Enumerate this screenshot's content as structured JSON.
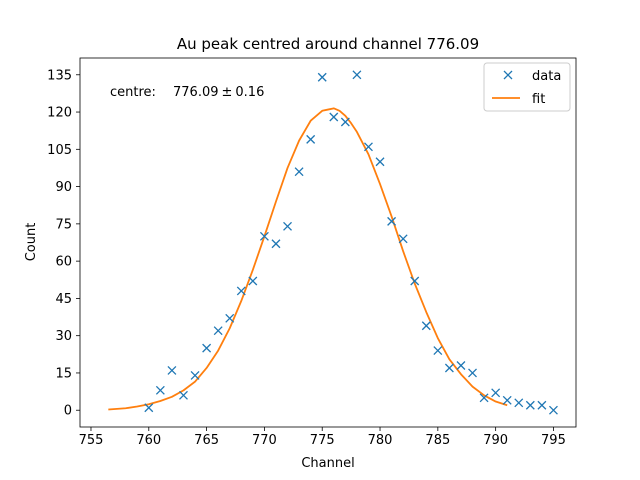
{
  "chart_data": {
    "type": "scatter",
    "title": "Au peak centred around channel 776.09",
    "xlabel": "Channel",
    "ylabel": "Count",
    "xlim": [
      754.05,
      796.95
    ],
    "ylim": [
      -6.75,
      141.75
    ],
    "xticks": [
      755,
      760,
      765,
      770,
      775,
      780,
      785,
      790,
      795
    ],
    "yticks": [
      0,
      15,
      30,
      45,
      60,
      75,
      90,
      105,
      120,
      135
    ],
    "grid": false,
    "legend_position": "top-right",
    "annotation": {
      "label": "centre:",
      "value": "776.09",
      "pm": "±",
      "error": "0.16"
    },
    "series": [
      {
        "name": "data",
        "kind": "markers",
        "marker": "x",
        "color": "#1f77b4",
        "x": [
          760,
          761,
          762,
          763,
          764,
          765,
          766,
          767,
          768,
          769,
          770,
          771,
          772,
          773,
          774,
          775,
          776,
          777,
          778,
          779,
          780,
          781,
          782,
          783,
          784,
          785,
          786,
          787,
          788,
          789,
          790,
          791,
          792,
          793,
          794,
          795
        ],
        "y": [
          1,
          8,
          16,
          6,
          14,
          25,
          32,
          37,
          48,
          52,
          70,
          67,
          74,
          96,
          109,
          134,
          118,
          116,
          135,
          106,
          100,
          76,
          69,
          52,
          34,
          24,
          17,
          18,
          15,
          5,
          7,
          4,
          3,
          2,
          2,
          0
        ]
      },
      {
        "name": "fit",
        "kind": "line",
        "color": "#ff7f0e",
        "x": [
          756.5,
          758,
          759,
          760,
          761,
          762,
          763,
          764,
          765,
          766,
          767,
          768,
          769,
          770,
          771,
          772,
          773,
          774,
          775,
          775.5,
          776,
          776.5,
          777,
          777.5,
          778,
          779,
          780,
          781,
          782,
          783,
          784,
          785,
          786,
          787,
          788,
          789,
          790,
          791
        ],
        "y": [
          0.3,
          0.8,
          1.5,
          2.4,
          3.7,
          5.4,
          8,
          11.5,
          17,
          24,
          33,
          44,
          56.5,
          70,
          84,
          97.5,
          108.5,
          116.5,
          120.5,
          121,
          121.5,
          120.5,
          118.5,
          115.5,
          112,
          103,
          91,
          78,
          64,
          51,
          39.5,
          29,
          20.5,
          14.5,
          9.5,
          6,
          3.5,
          2
        ]
      }
    ]
  }
}
